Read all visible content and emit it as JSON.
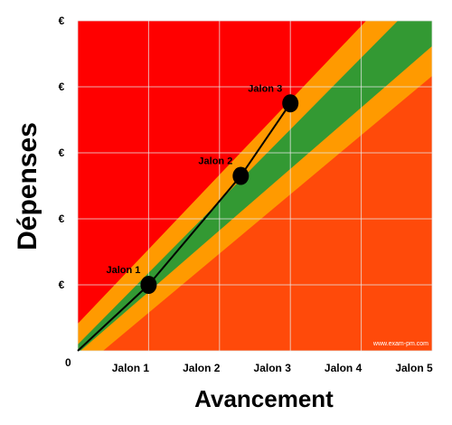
{
  "chart_data": {
    "type": "line",
    "xlabel": "Avancement",
    "ylabel": "Dépenses",
    "origin_label": "0",
    "x_ticks": [
      "Jalon 1",
      "Jalon 2",
      "Jalon 3",
      "Jalon 4",
      "Jalon 5"
    ],
    "y_ticks": [
      "€",
      "€",
      "€",
      "€",
      "€"
    ],
    "xlim": [
      0,
      5
    ],
    "ylim": [
      0,
      5
    ],
    "grid": true,
    "zones": [
      {
        "name": "red",
        "color": "#ff0000"
      },
      {
        "name": "orange-red",
        "color": "#ff4a0a"
      },
      {
        "name": "orange",
        "color": "#ff9a00"
      },
      {
        "name": "green",
        "color": "#339933"
      }
    ],
    "series": [
      {
        "color": "#000000",
        "x": [
          0,
          1,
          2.3,
          3
        ],
        "y": [
          0,
          1,
          2.65,
          3.75
        ],
        "point_labels": [
          "",
          "Jalon 1",
          "Jalon 2",
          "Jalon 3"
        ]
      }
    ],
    "watermark": "www.exam-pm.com"
  }
}
